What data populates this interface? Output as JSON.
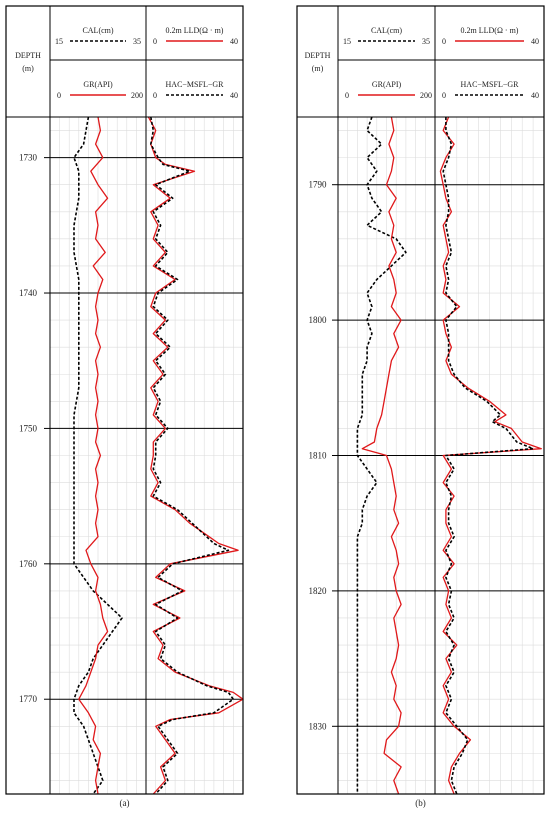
{
  "panels": [
    {
      "caption": "(a)",
      "depth_label": "DEPTH",
      "depth_unit": "(m)",
      "depth_ticks": [
        1730,
        1740,
        1750,
        1760,
        1770
      ],
      "track1_headers": [
        {
          "name": "CAL(cm)",
          "min": "15",
          "max": "35",
          "style": "dashed",
          "color": "#000000"
        },
        {
          "name": "GR(API)",
          "min": "0",
          "max": "200",
          "style": "solid",
          "color": "#e0191b"
        }
      ],
      "track2_headers": [
        {
          "name": "0.2m LLD(Ω · m)",
          "min": "0",
          "max": "40",
          "style": "solid",
          "color": "#e0191b"
        },
        {
          "name": "HAC−MSFL−GR",
          "min": "0",
          "max": "40",
          "style": "dashed",
          "color": "#000000"
        }
      ]
    },
    {
      "caption": "(b)",
      "depth_label": "DEPTH",
      "depth_unit": "(m)",
      "depth_ticks": [
        1790,
        1800,
        1810,
        1820,
        1830
      ],
      "track1_headers": [
        {
          "name": "CAL(cm)",
          "min": "15",
          "max": "35",
          "style": "dashed",
          "color": "#000000"
        },
        {
          "name": "GR(API)",
          "min": "0",
          "max": "200",
          "style": "solid",
          "color": "#e0191b"
        }
      ],
      "track2_headers": [
        {
          "name": "0.2m LLD(Ω · m)",
          "min": "0",
          "max": "40",
          "style": "solid",
          "color": "#e0191b"
        },
        {
          "name": "HAC−MSFL−GR",
          "min": "0",
          "max": "40",
          "style": "dashed",
          "color": "#000000"
        }
      ]
    }
  ],
  "chart_data": [
    {
      "type": "line",
      "depth_range": [
        1727,
        1777
      ],
      "depth_axis": "depth (m), increasing downward",
      "series": [
        {
          "name": "CAL(cm)",
          "track": 1,
          "range": [
            15,
            35
          ],
          "color": "#000000",
          "style": "dashed",
          "depth": [
            1727,
            1729,
            1730,
            1731,
            1733,
            1735,
            1737,
            1739,
            1741,
            1743,
            1745,
            1747,
            1749,
            1751,
            1753,
            1755,
            1757,
            1759,
            1760,
            1761,
            1762,
            1763,
            1764,
            1765,
            1766,
            1767,
            1768,
            1769,
            1770,
            1771,
            1772,
            1773,
            1774,
            1775,
            1776,
            1777
          ],
          "values": [
            23,
            22,
            20,
            21,
            21,
            20,
            20,
            21,
            21,
            21,
            21,
            21,
            20,
            20,
            20,
            20,
            20,
            20,
            20,
            22,
            24,
            27,
            30,
            28,
            26,
            24,
            23,
            21,
            20,
            20,
            22,
            23,
            24,
            25,
            26,
            24
          ]
        },
        {
          "name": "GR(API)",
          "track": 1,
          "range": [
            0,
            200
          ],
          "color": "#e0191b",
          "style": "solid",
          "depth": [
            1727,
            1728,
            1729,
            1730,
            1731,
            1732,
            1733,
            1734,
            1735,
            1736,
            1737,
            1738,
            1739,
            1740,
            1741,
            1742,
            1743,
            1744,
            1745,
            1746,
            1747,
            1748,
            1749,
            1750,
            1751,
            1752,
            1753,
            1754,
            1755,
            1756,
            1757,
            1758,
            1759,
            1760,
            1761,
            1762,
            1763,
            1764,
            1765,
            1766,
            1767,
            1768,
            1769,
            1770,
            1771,
            1772,
            1773,
            1774,
            1775,
            1776,
            1777
          ],
          "values": [
            100,
            105,
            95,
            110,
            85,
            100,
            120,
            95,
            100,
            95,
            115,
            90,
            110,
            100,
            95,
            100,
            95,
            105,
            95,
            100,
            95,
            100,
            95,
            100,
            95,
            105,
            95,
            100,
            95,
            100,
            95,
            100,
            75,
            85,
            100,
            95,
            105,
            110,
            120,
            100,
            95,
            85,
            75,
            60,
            80,
            95,
            90,
            105,
            100,
            95,
            100
          ]
        },
        {
          "name": "0.2m LLD(Ω · m)",
          "track": 2,
          "range": [
            0,
            40
          ],
          "color": "#e0191b",
          "style": "solid",
          "depth": [
            1727,
            1728,
            1729,
            1730,
            1730.5,
            1731,
            1732,
            1733,
            1734,
            1735,
            1736,
            1737,
            1738,
            1739,
            1740,
            1741,
            1742,
            1743,
            1744,
            1745,
            1746,
            1747,
            1748,
            1749,
            1750,
            1751,
            1752,
            1753,
            1754,
            1755,
            1756,
            1757,
            1758,
            1758.5,
            1759,
            1760,
            1761,
            1762,
            1763,
            1764,
            1765,
            1766,
            1767,
            1768,
            1769,
            1769.5,
            1770,
            1771,
            1771.5,
            1772,
            1773,
            1774,
            1775,
            1776,
            1777
          ],
          "values": [
            1,
            4,
            2,
            4,
            8,
            20,
            3,
            10,
            2,
            5,
            3,
            8,
            3,
            12,
            4,
            2,
            8,
            3,
            9,
            3,
            7,
            2,
            5,
            3,
            8,
            3,
            3,
            2,
            5,
            2,
            12,
            18,
            26,
            30,
            38,
            10,
            4,
            16,
            3,
            14,
            3,
            7,
            5,
            12,
            26,
            36,
            40,
            30,
            10,
            4,
            8,
            12,
            6,
            8,
            3
          ]
        },
        {
          "name": "HAC−MSFL−GR",
          "track": 2,
          "range": [
            0,
            40
          ],
          "color": "#000000",
          "style": "dashed",
          "depth": [
            1727,
            1728,
            1729,
            1730,
            1730.5,
            1731,
            1732,
            1733,
            1734,
            1735,
            1736,
            1737,
            1738,
            1739,
            1740,
            1741,
            1742,
            1743,
            1744,
            1745,
            1746,
            1747,
            1748,
            1749,
            1750,
            1751,
            1752,
            1753,
            1754,
            1755,
            1756,
            1757,
            1758,
            1758.5,
            1759,
            1760,
            1761,
            1762,
            1763,
            1764,
            1765,
            1766,
            1767,
            1768,
            1769,
            1769.5,
            1770,
            1771,
            1771.5,
            1772,
            1773,
            1774,
            1775,
            1776,
            1777
          ],
          "values": [
            2,
            3,
            2,
            5,
            7,
            18,
            4,
            11,
            3,
            6,
            4,
            9,
            4,
            13,
            5,
            3,
            9,
            4,
            10,
            4,
            8,
            3,
            6,
            4,
            9,
            4,
            4,
            3,
            6,
            3,
            13,
            19,
            25,
            28,
            34,
            11,
            5,
            15,
            4,
            13,
            4,
            8,
            6,
            13,
            25,
            34,
            36,
            28,
            11,
            5,
            9,
            13,
            7,
            9,
            4
          ]
        }
      ]
    },
    {
      "type": "line",
      "depth_range": [
        1785,
        1835
      ],
      "depth_axis": "depth (m), increasing downward",
      "series": [
        {
          "name": "CAL(cm)",
          "track": 1,
          "range": [
            15,
            35
          ],
          "color": "#000000",
          "style": "dashed",
          "depth": [
            1785,
            1786,
            1787,
            1788,
            1789,
            1790,
            1791,
            1792,
            1793,
            1794,
            1795,
            1796,
            1797,
            1798,
            1799,
            1800,
            1801,
            1802,
            1803,
            1804,
            1805,
            1806,
            1807,
            1808,
            1809,
            1810,
            1811,
            1812,
            1813,
            1814,
            1815,
            1816,
            1818,
            1820,
            1822,
            1824,
            1826,
            1828,
            1830,
            1832,
            1834,
            1835
          ],
          "values": [
            22,
            21,
            24,
            21,
            23,
            21,
            22,
            24,
            21,
            27,
            29,
            26,
            23,
            21,
            22,
            21,
            22,
            21,
            21,
            20,
            20,
            20,
            20,
            19,
            19,
            19,
            21,
            23,
            21,
            20,
            20,
            19,
            19,
            19,
            19,
            19,
            19,
            19,
            19,
            19,
            19,
            19
          ]
        },
        {
          "name": "GR(API)",
          "track": 1,
          "range": [
            0,
            200
          ],
          "color": "#e0191b",
          "style": "solid",
          "depth": [
            1785,
            1786,
            1787,
            1788,
            1789,
            1790,
            1791,
            1792,
            1793,
            1794,
            1795,
            1796,
            1797,
            1798,
            1799,
            1800,
            1801,
            1802,
            1803,
            1804,
            1805,
            1806,
            1807,
            1808,
            1809,
            1809.5,
            1810,
            1811,
            1812,
            1813,
            1814,
            1815,
            1816,
            1817,
            1818,
            1819,
            1820,
            1821,
            1822,
            1823,
            1824,
            1825,
            1826,
            1827,
            1828,
            1829,
            1830,
            1831,
            1832,
            1833,
            1834,
            1835
          ],
          "values": [
            110,
            115,
            105,
            115,
            110,
            100,
            120,
            105,
            115,
            110,
            120,
            105,
            115,
            120,
            110,
            130,
            115,
            125,
            110,
            105,
            100,
            95,
            90,
            80,
            75,
            50,
            100,
            110,
            115,
            120,
            115,
            125,
            110,
            120,
            125,
            115,
            120,
            130,
            115,
            120,
            125,
            120,
            110,
            120,
            115,
            130,
            125,
            100,
            95,
            130,
            115,
            125
          ]
        },
        {
          "name": "0.2m LLD(Ω · m)",
          "track": 2,
          "range": [
            0,
            40
          ],
          "color": "#e0191b",
          "style": "solid",
          "depth": [
            1785,
            1786,
            1787,
            1788,
            1789,
            1790,
            1791,
            1792,
            1793,
            1794,
            1795,
            1796,
            1797,
            1798,
            1799,
            1800,
            1801,
            1802,
            1803,
            1804,
            1805,
            1806,
            1807,
            1807.5,
            1808,
            1809,
            1809.5,
            1810,
            1811,
            1812,
            1813,
            1814,
            1815,
            1816,
            1817,
            1818,
            1819,
            1820,
            1821,
            1822,
            1823,
            1824,
            1825,
            1826,
            1827,
            1828,
            1829,
            1830,
            1831,
            1832,
            1833,
            1834,
            1835
          ],
          "values": [
            5,
            3,
            7,
            4,
            2,
            3,
            4,
            6,
            3,
            4,
            5,
            3,
            4,
            3,
            9,
            3,
            4,
            6,
            4,
            6,
            12,
            20,
            26,
            22,
            28,
            32,
            39,
            3,
            6,
            3,
            7,
            4,
            4,
            6,
            3,
            7,
            3,
            5,
            4,
            6,
            3,
            8,
            4,
            6,
            3,
            5,
            3,
            7,
            13,
            9,
            6,
            5,
            7
          ]
        },
        {
          "name": "HAC−MSFL−GR",
          "track": 2,
          "range": [
            0,
            40
          ],
          "color": "#000000",
          "style": "dashed",
          "depth": [
            1785,
            1786,
            1787,
            1788,
            1789,
            1790,
            1791,
            1792,
            1793,
            1794,
            1795,
            1796,
            1797,
            1798,
            1799,
            1800,
            1801,
            1802,
            1803,
            1804,
            1805,
            1806,
            1807,
            1807.5,
            1808,
            1809,
            1809.5,
            1810,
            1811,
            1812,
            1813,
            1814,
            1815,
            1816,
            1817,
            1818,
            1819,
            1820,
            1821,
            1822,
            1823,
            1824,
            1825,
            1826,
            1827,
            1828,
            1829,
            1830,
            1831,
            1832,
            1833,
            1834,
            1835
          ],
          "values": [
            4,
            4,
            6,
            5,
            3,
            4,
            5,
            5,
            4,
            5,
            6,
            4,
            5,
            4,
            8,
            4,
            5,
            5,
            5,
            7,
            11,
            19,
            24,
            21,
            26,
            30,
            36,
            4,
            7,
            4,
            6,
            5,
            5,
            7,
            4,
            6,
            4,
            6,
            5,
            7,
            4,
            7,
            5,
            7,
            4,
            6,
            4,
            8,
            12,
            10,
            7,
            6,
            8
          ]
        }
      ]
    }
  ]
}
